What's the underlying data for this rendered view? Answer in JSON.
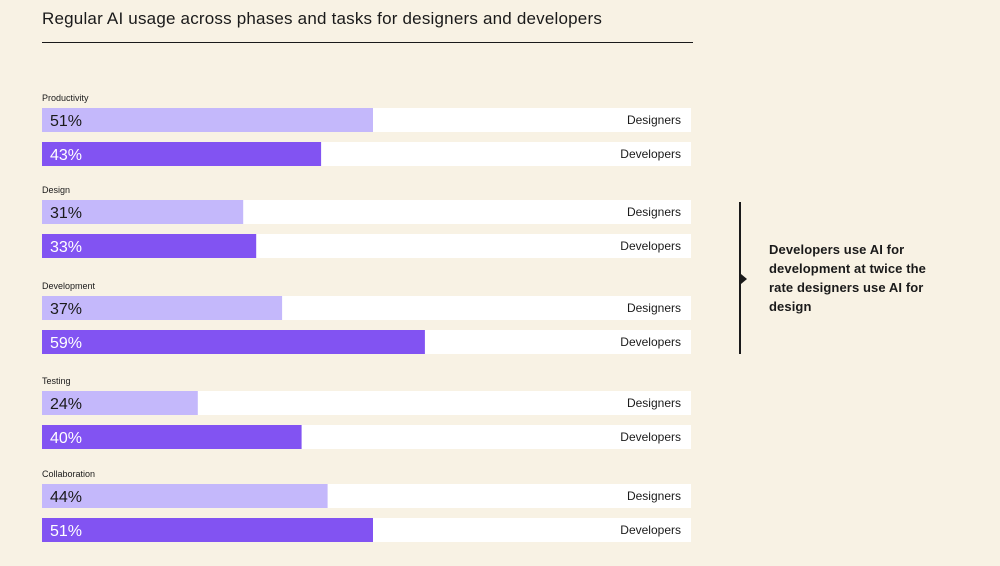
{
  "title": "Regular AI usage across phases and tasks for designers and developers",
  "annotation": "Developers use AI for development at twice the rate designers use AI for design",
  "colors": {
    "background": "#f8f2e4",
    "track": "#ffffff",
    "designers": "#c4b8fb",
    "developers": "#8253f2",
    "text": "#1a1a1a"
  },
  "chart_data": {
    "type": "bar",
    "orientation": "horizontal",
    "title": "Regular AI usage across phases and tasks for designers and developers",
    "xlim": [
      0,
      100
    ],
    "value_format": "percent",
    "grid": false,
    "categories": [
      "Productivity",
      "Design",
      "Development",
      "Testing",
      "Collaboration"
    ],
    "series": [
      {
        "name": "Designers",
        "values": [
          51,
          31,
          37,
          24,
          44
        ]
      },
      {
        "name": "Developers",
        "values": [
          43,
          33,
          59,
          40,
          51
        ]
      }
    ]
  }
}
